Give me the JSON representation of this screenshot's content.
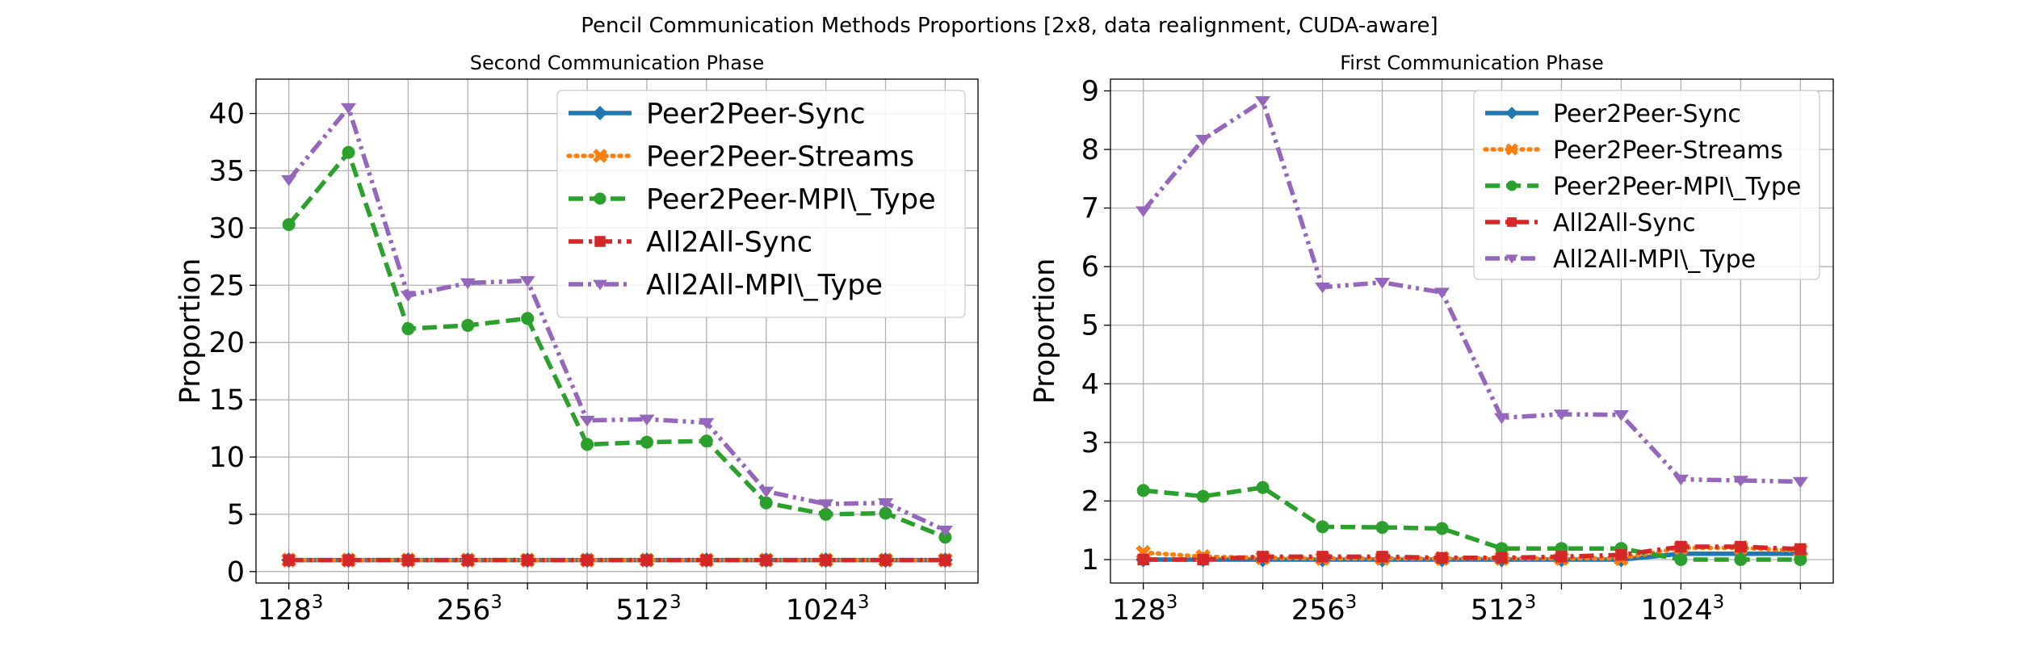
{
  "figure": {
    "suptitle": "Pencil Communication Methods Proportions [2x8, data realignment, CUDA-aware]"
  },
  "chart_data": [
    {
      "type": "line",
      "title": "Second Communication Phase",
      "xlabel": "",
      "ylabel": "Proportion",
      "x_tick_labels": [
        {
          "base": "128",
          "sup": "3"
        },
        {
          "base": "256",
          "sup": "3"
        },
        {
          "base": "512",
          "sup": "3"
        },
        {
          "base": "1024",
          "sup": "3"
        }
      ],
      "x_points": 12,
      "ylim": [
        -1,
        43
      ],
      "y_ticks": [
        0,
        5,
        10,
        15,
        20,
        25,
        30,
        35,
        40
      ],
      "grid": true,
      "legend_position": "upper right",
      "series": [
        {
          "name": "Peer2Peer-Sync",
          "color": "#1f77b4",
          "marker": "diamond",
          "dash": "solid",
          "values": [
            1.0,
            1.0,
            1.0,
            1.0,
            1.0,
            1.0,
            1.0,
            1.0,
            1.0,
            1.0,
            1.0,
            1.0
          ]
        },
        {
          "name": "Peer2Peer-Streams",
          "color": "#ff7f0e",
          "marker": "x",
          "dash": "dotted",
          "values": [
            1.0,
            1.0,
            1.0,
            1.0,
            1.0,
            1.0,
            1.0,
            1.0,
            1.0,
            1.0,
            1.0,
            1.0
          ]
        },
        {
          "name": "Peer2Peer-MPI\\_Type",
          "color": "#2ca02c",
          "marker": "circle",
          "dash": "dashed",
          "values": [
            30.3,
            36.6,
            21.2,
            21.5,
            22.1,
            11.1,
            11.3,
            11.4,
            6.0,
            5.0,
            5.1,
            3.0
          ]
        },
        {
          "name": "All2All-Sync",
          "color": "#d62728",
          "marker": "square",
          "dash": "dashdot",
          "values": [
            1.0,
            1.0,
            1.0,
            1.0,
            1.0,
            1.0,
            1.0,
            1.0,
            1.0,
            1.0,
            1.0,
            1.0
          ]
        },
        {
          "name": "All2All-MPI\\_Type",
          "color": "#9467bd",
          "marker": "triangle_down",
          "dash": "dashdotdot",
          "values": [
            34.2,
            40.5,
            24.1,
            25.2,
            25.4,
            13.2,
            13.3,
            13.0,
            7.0,
            5.9,
            6.0,
            3.6
          ]
        }
      ]
    },
    {
      "type": "line",
      "title": "First Communication Phase",
      "xlabel": "",
      "ylabel": "Proportion",
      "x_tick_labels": [
        {
          "base": "128",
          "sup": "3"
        },
        {
          "base": "256",
          "sup": "3"
        },
        {
          "base": "512",
          "sup": "3"
        },
        {
          "base": "1024",
          "sup": "3"
        }
      ],
      "x_points": 12,
      "ylim": [
        0.6,
        9.2
      ],
      "y_ticks": [
        1,
        2,
        3,
        4,
        5,
        6,
        7,
        8,
        9
      ],
      "grid": true,
      "legend_position": "upper right",
      "series": [
        {
          "name": "Peer2Peer-Sync",
          "color": "#1f77b4",
          "marker": "diamond",
          "dash": "solid",
          "values": [
            1.0,
            1.0,
            1.0,
            1.0,
            1.0,
            1.0,
            1.0,
            1.0,
            1.0,
            1.1,
            1.1,
            1.1
          ]
        },
        {
          "name": "Peer2Peer-Streams",
          "color": "#ff7f0e",
          "marker": "x",
          "dash": "dotted",
          "values": [
            1.12,
            1.05,
            1.03,
            1.02,
            1.02,
            1.02,
            1.02,
            1.02,
            1.02,
            1.2,
            1.2,
            1.15
          ]
        },
        {
          "name": "Peer2Peer-MPI\\_Type",
          "color": "#2ca02c",
          "marker": "circle",
          "dash": "dashed",
          "values": [
            2.18,
            2.08,
            2.23,
            1.56,
            1.55,
            1.53,
            1.19,
            1.19,
            1.19,
            1.0,
            1.0,
            1.0
          ]
        },
        {
          "name": "All2All-Sync",
          "color": "#d62728",
          "marker": "square",
          "dash": "dashdot",
          "values": [
            1.0,
            1.0,
            1.05,
            1.05,
            1.05,
            1.03,
            1.03,
            1.05,
            1.08,
            1.22,
            1.22,
            1.18
          ]
        },
        {
          "name": "All2All-MPI\\_Type",
          "color": "#9467bd",
          "marker": "triangle_down",
          "dash": "dashdotdot",
          "values": [
            6.95,
            8.17,
            8.83,
            5.65,
            5.73,
            5.56,
            3.42,
            3.48,
            3.47,
            2.37,
            2.35,
            2.33
          ]
        }
      ]
    }
  ]
}
